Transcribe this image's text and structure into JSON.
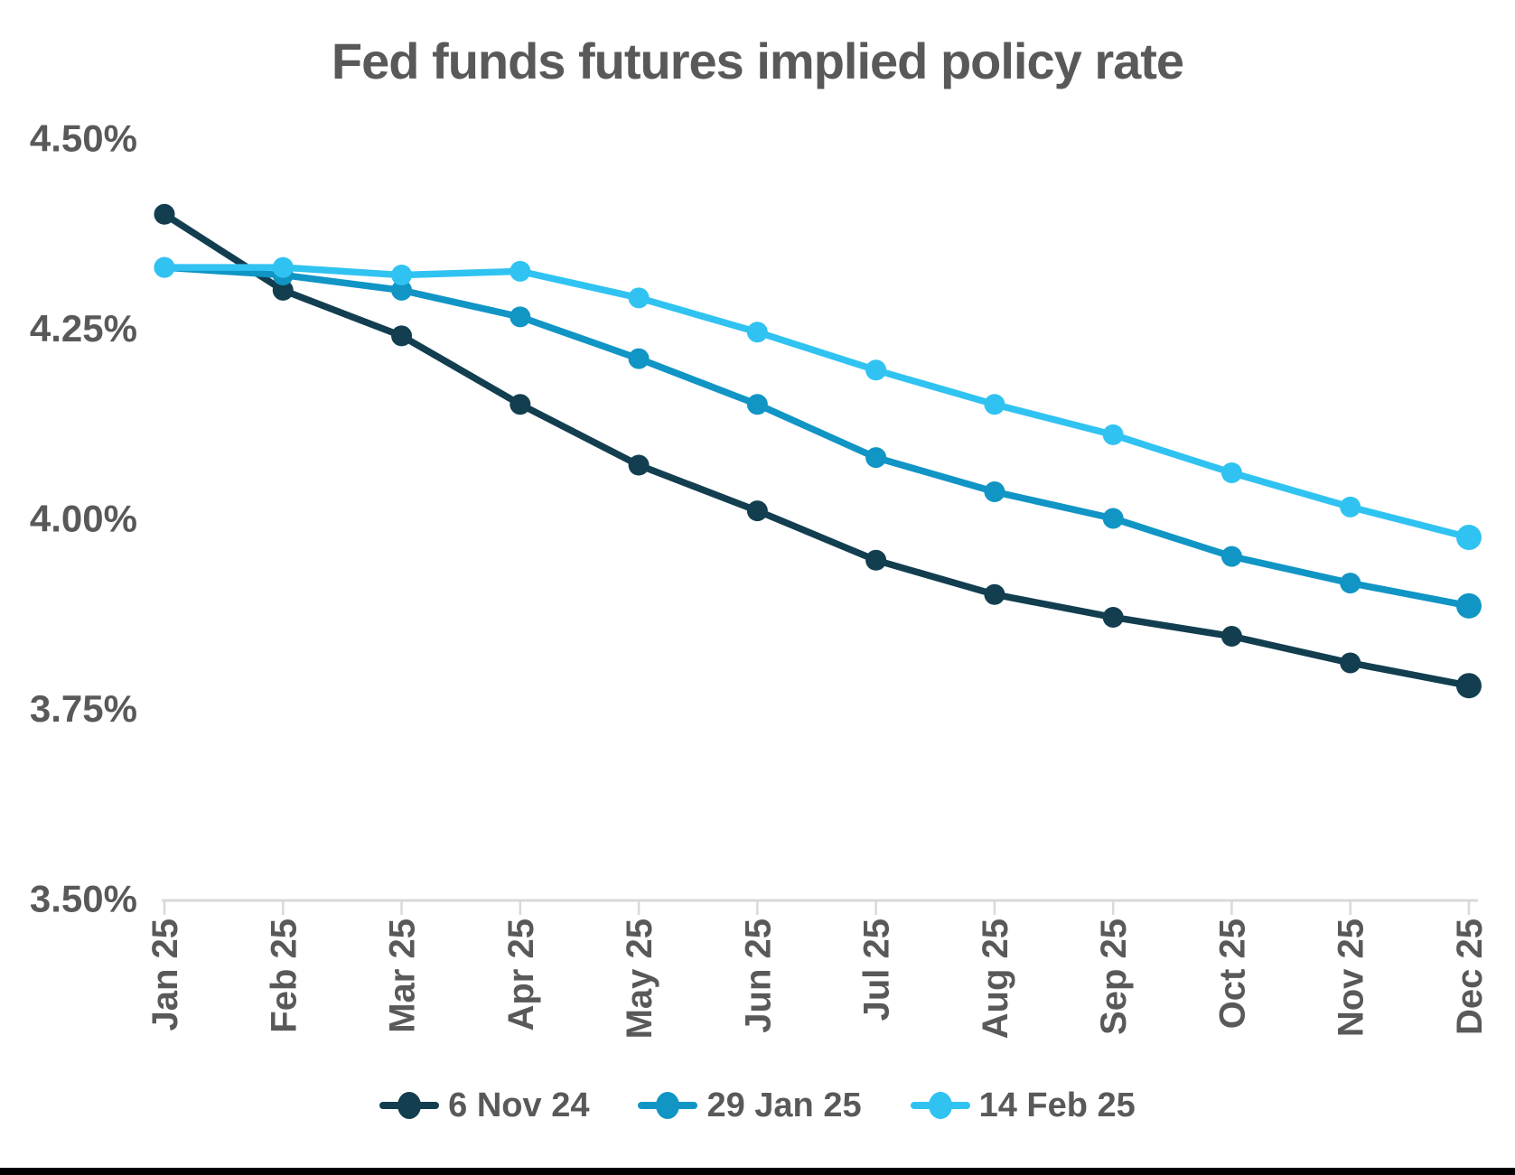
{
  "page": {
    "background_color": "#ffffff",
    "bottom_border_color": "#000000",
    "text_color": "#595959",
    "axis_color": "#D9D9D9"
  },
  "chart_data": {
    "type": "line",
    "title": "Fed funds futures implied policy rate",
    "categories": [
      "Jan 25",
      "Feb 25",
      "Mar 25",
      "Apr 25",
      "May 25",
      "Jun 25",
      "Jul 25",
      "Aug 25",
      "Sep 25",
      "Oct 25",
      "Nov 25",
      "Dec 25"
    ],
    "series": [
      {
        "name": "6 Nov 24",
        "color": "#123E50",
        "values": [
          4.4,
          4.3,
          4.24,
          4.15,
          4.07,
          4.01,
          3.945,
          3.9,
          3.87,
          3.845,
          3.81,
          3.78
        ]
      },
      {
        "name": "29 Jan 25",
        "color": "#1095C5",
        "values": [
          4.33,
          4.32,
          4.3,
          4.265,
          4.21,
          4.15,
          4.08,
          4.035,
          4.0,
          3.95,
          3.915,
          3.885
        ]
      },
      {
        "name": "14 Feb 25",
        "color": "#30C3F1",
        "values": [
          4.33,
          4.33,
          4.32,
          4.325,
          4.29,
          4.245,
          4.195,
          4.15,
          4.11,
          4.06,
          4.015,
          3.975
        ]
      }
    ],
    "y_axis": {
      "min": 3.5,
      "max": 4.5,
      "step": 0.25,
      "tick_labels": [
        "4.50%",
        "4.25%",
        "4.00%",
        "3.75%",
        "3.50%"
      ]
    },
    "x_axis": {
      "label_rotation_deg": -90
    },
    "grid": false,
    "legend_position": "bottom"
  }
}
